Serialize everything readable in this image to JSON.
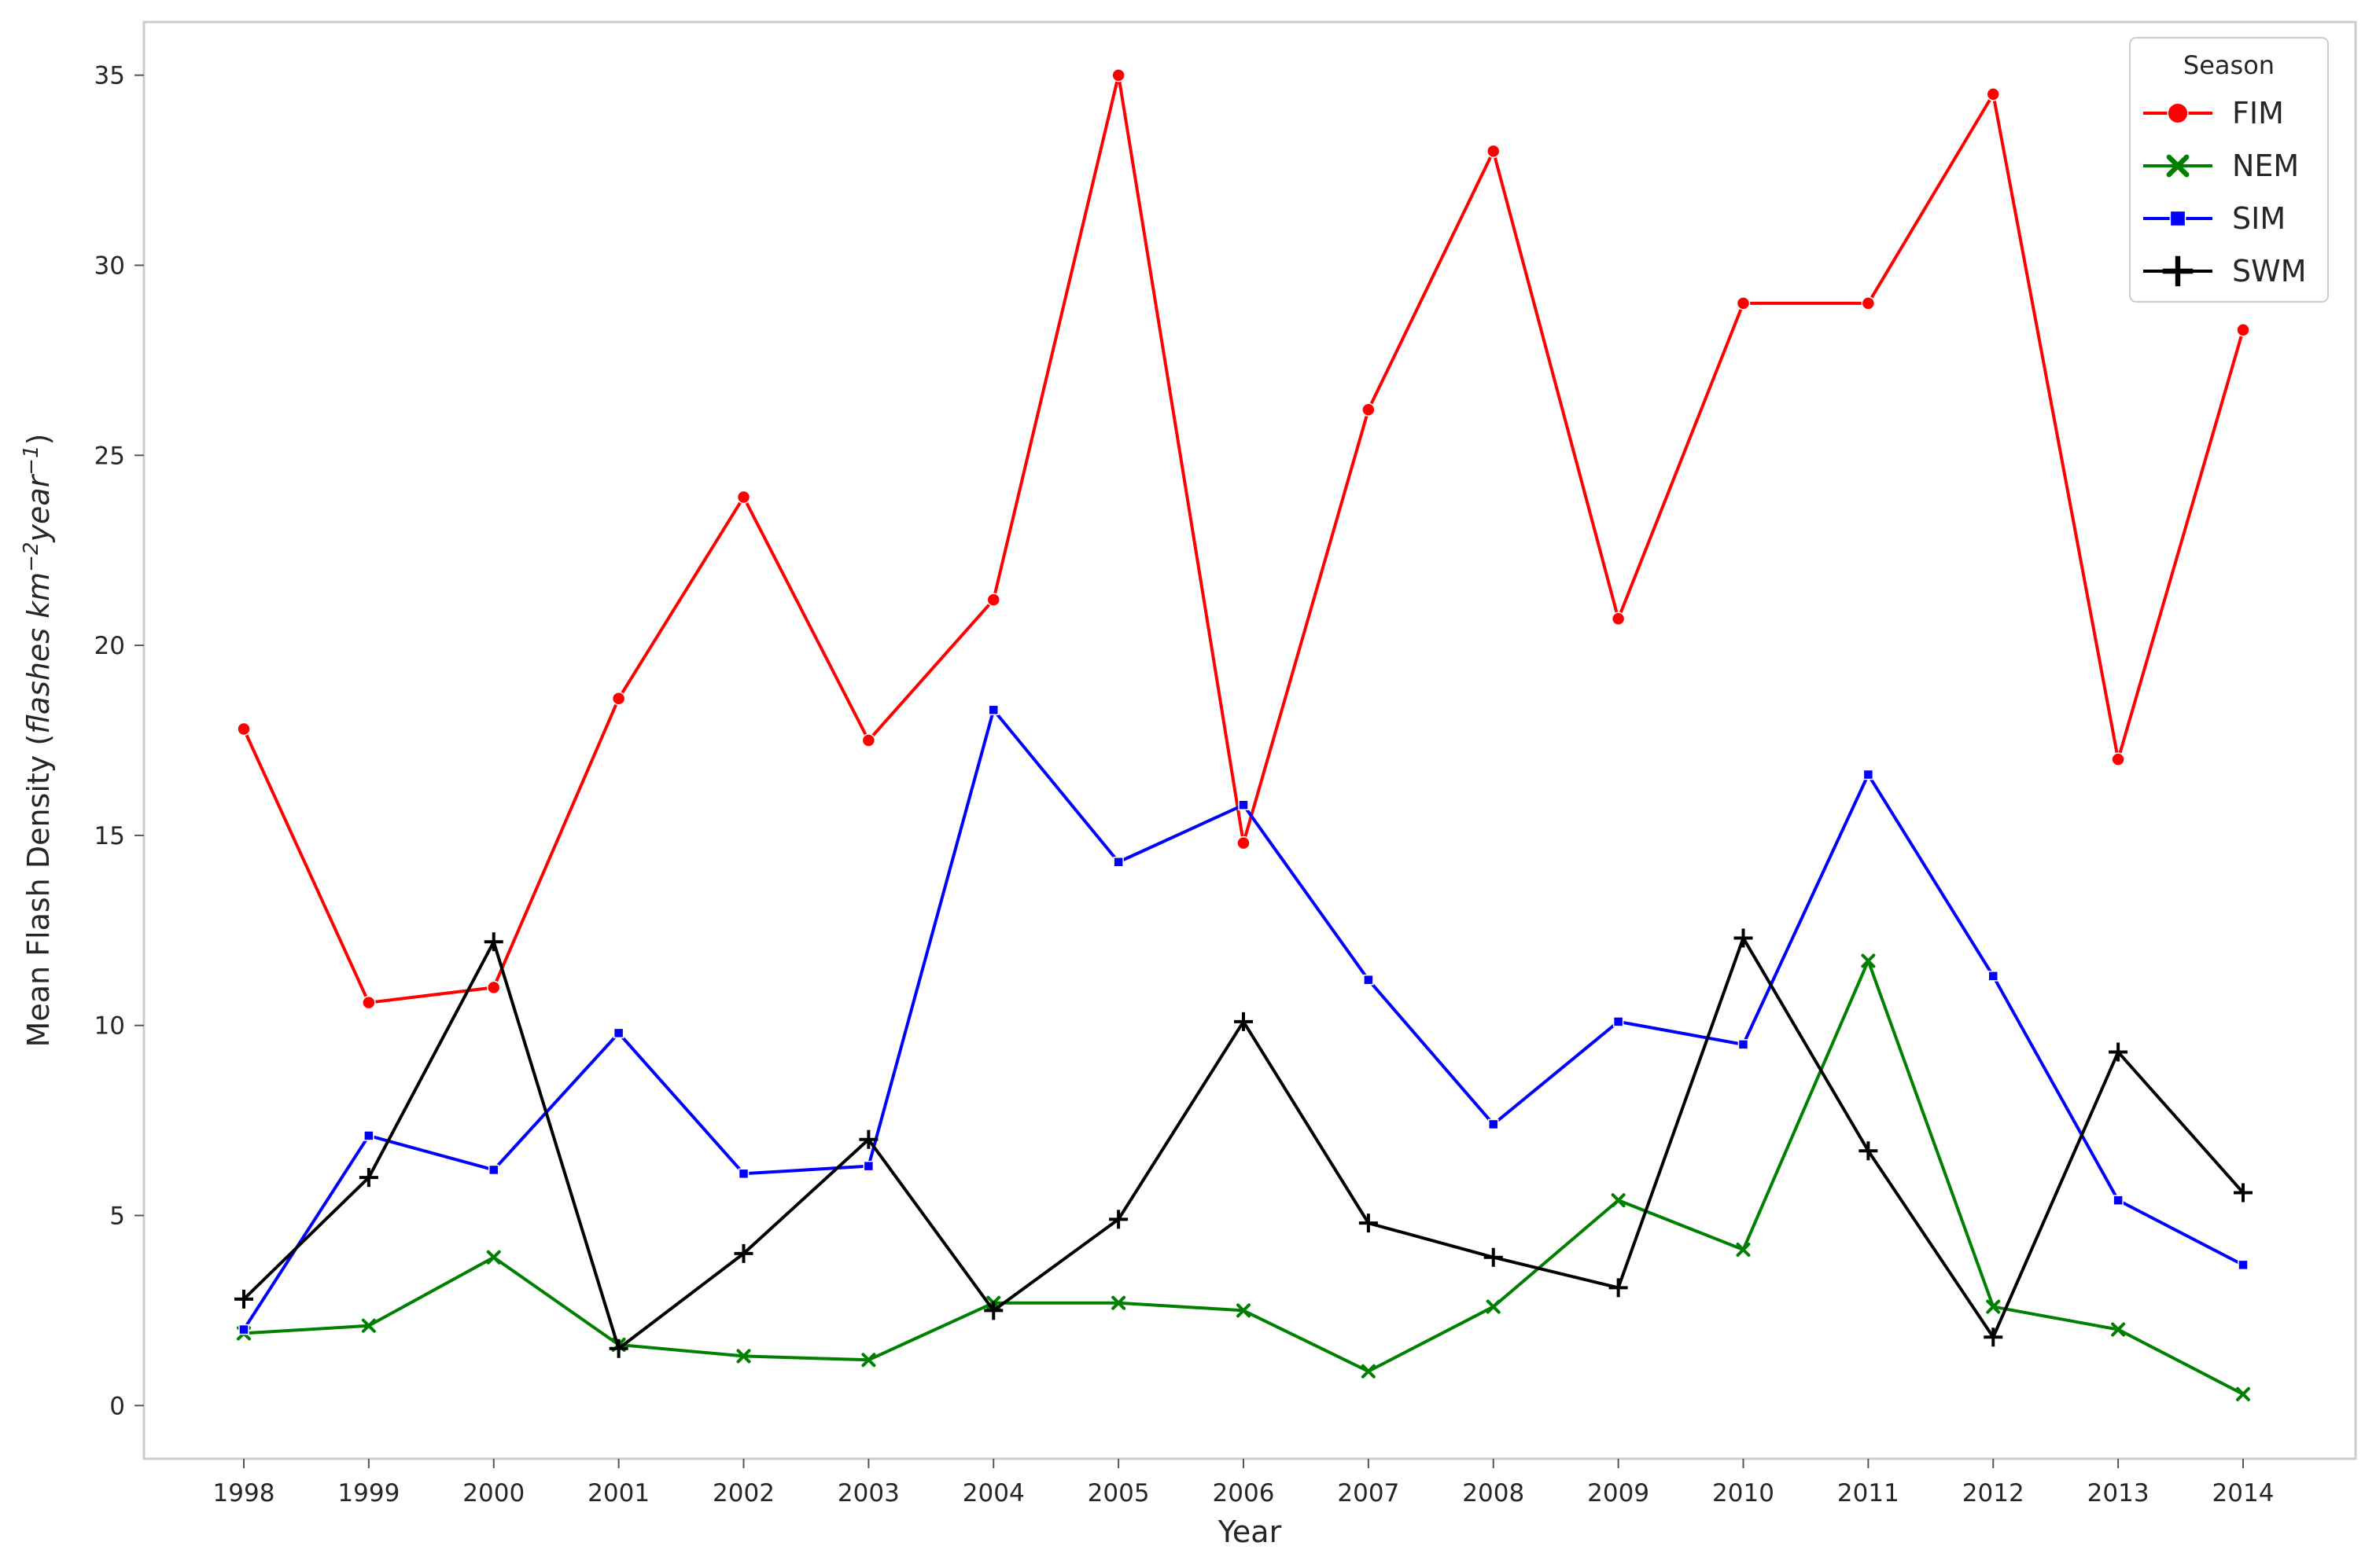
{
  "chart_data": {
    "type": "line",
    "title": "",
    "xlabel": "Year",
    "ylabel_main": "Mean Flash Density (",
    "ylabel_unit": "flashes km",
    "ylabel_exp1": "−2",
    "ylabel_unit2": "year",
    "ylabel_exp2": "−1",
    "ylabel_close": ")",
    "x": [
      "1998",
      "1999",
      "2000",
      "2001",
      "2002",
      "2003",
      "2004",
      "2005",
      "2006",
      "2007",
      "2008",
      "2009",
      "2010",
      "2011",
      "2012",
      "2013",
      "2014"
    ],
    "ylim": [
      -1.4,
      36.4
    ],
    "yticks": [
      0,
      5,
      10,
      15,
      20,
      25,
      30,
      35
    ],
    "grid": false,
    "legend": {
      "title": "Season",
      "placement": "top-right"
    },
    "series": [
      {
        "name": "FIM",
        "color": "#ff0000",
        "marker": "circle",
        "values": [
          17.8,
          10.6,
          11.0,
          18.6,
          23.9,
          17.5,
          21.2,
          35.0,
          14.8,
          26.2,
          33.0,
          20.7,
          29.0,
          29.0,
          34.5,
          17.0,
          28.3
        ]
      },
      {
        "name": "NEM",
        "color": "#008000",
        "marker": "x",
        "values": [
          1.9,
          2.1,
          3.9,
          1.6,
          1.3,
          1.2,
          2.7,
          2.7,
          2.5,
          0.9,
          2.6,
          5.4,
          4.1,
          11.7,
          2.6,
          2.0,
          0.3
        ]
      },
      {
        "name": "SIM",
        "color": "#0000ff",
        "marker": "square",
        "values": [
          2.0,
          7.1,
          6.2,
          9.8,
          6.1,
          6.3,
          18.3,
          14.3,
          15.8,
          11.2,
          7.4,
          10.1,
          9.5,
          16.6,
          11.3,
          5.4,
          3.7
        ]
      },
      {
        "name": "SWM",
        "color": "#000000",
        "marker": "plus",
        "values": [
          2.8,
          6.0,
          12.2,
          1.5,
          4.0,
          7.0,
          2.5,
          4.9,
          10.1,
          4.8,
          3.9,
          3.1,
          12.3,
          6.7,
          1.8,
          9.3,
          5.6
        ]
      }
    ]
  }
}
